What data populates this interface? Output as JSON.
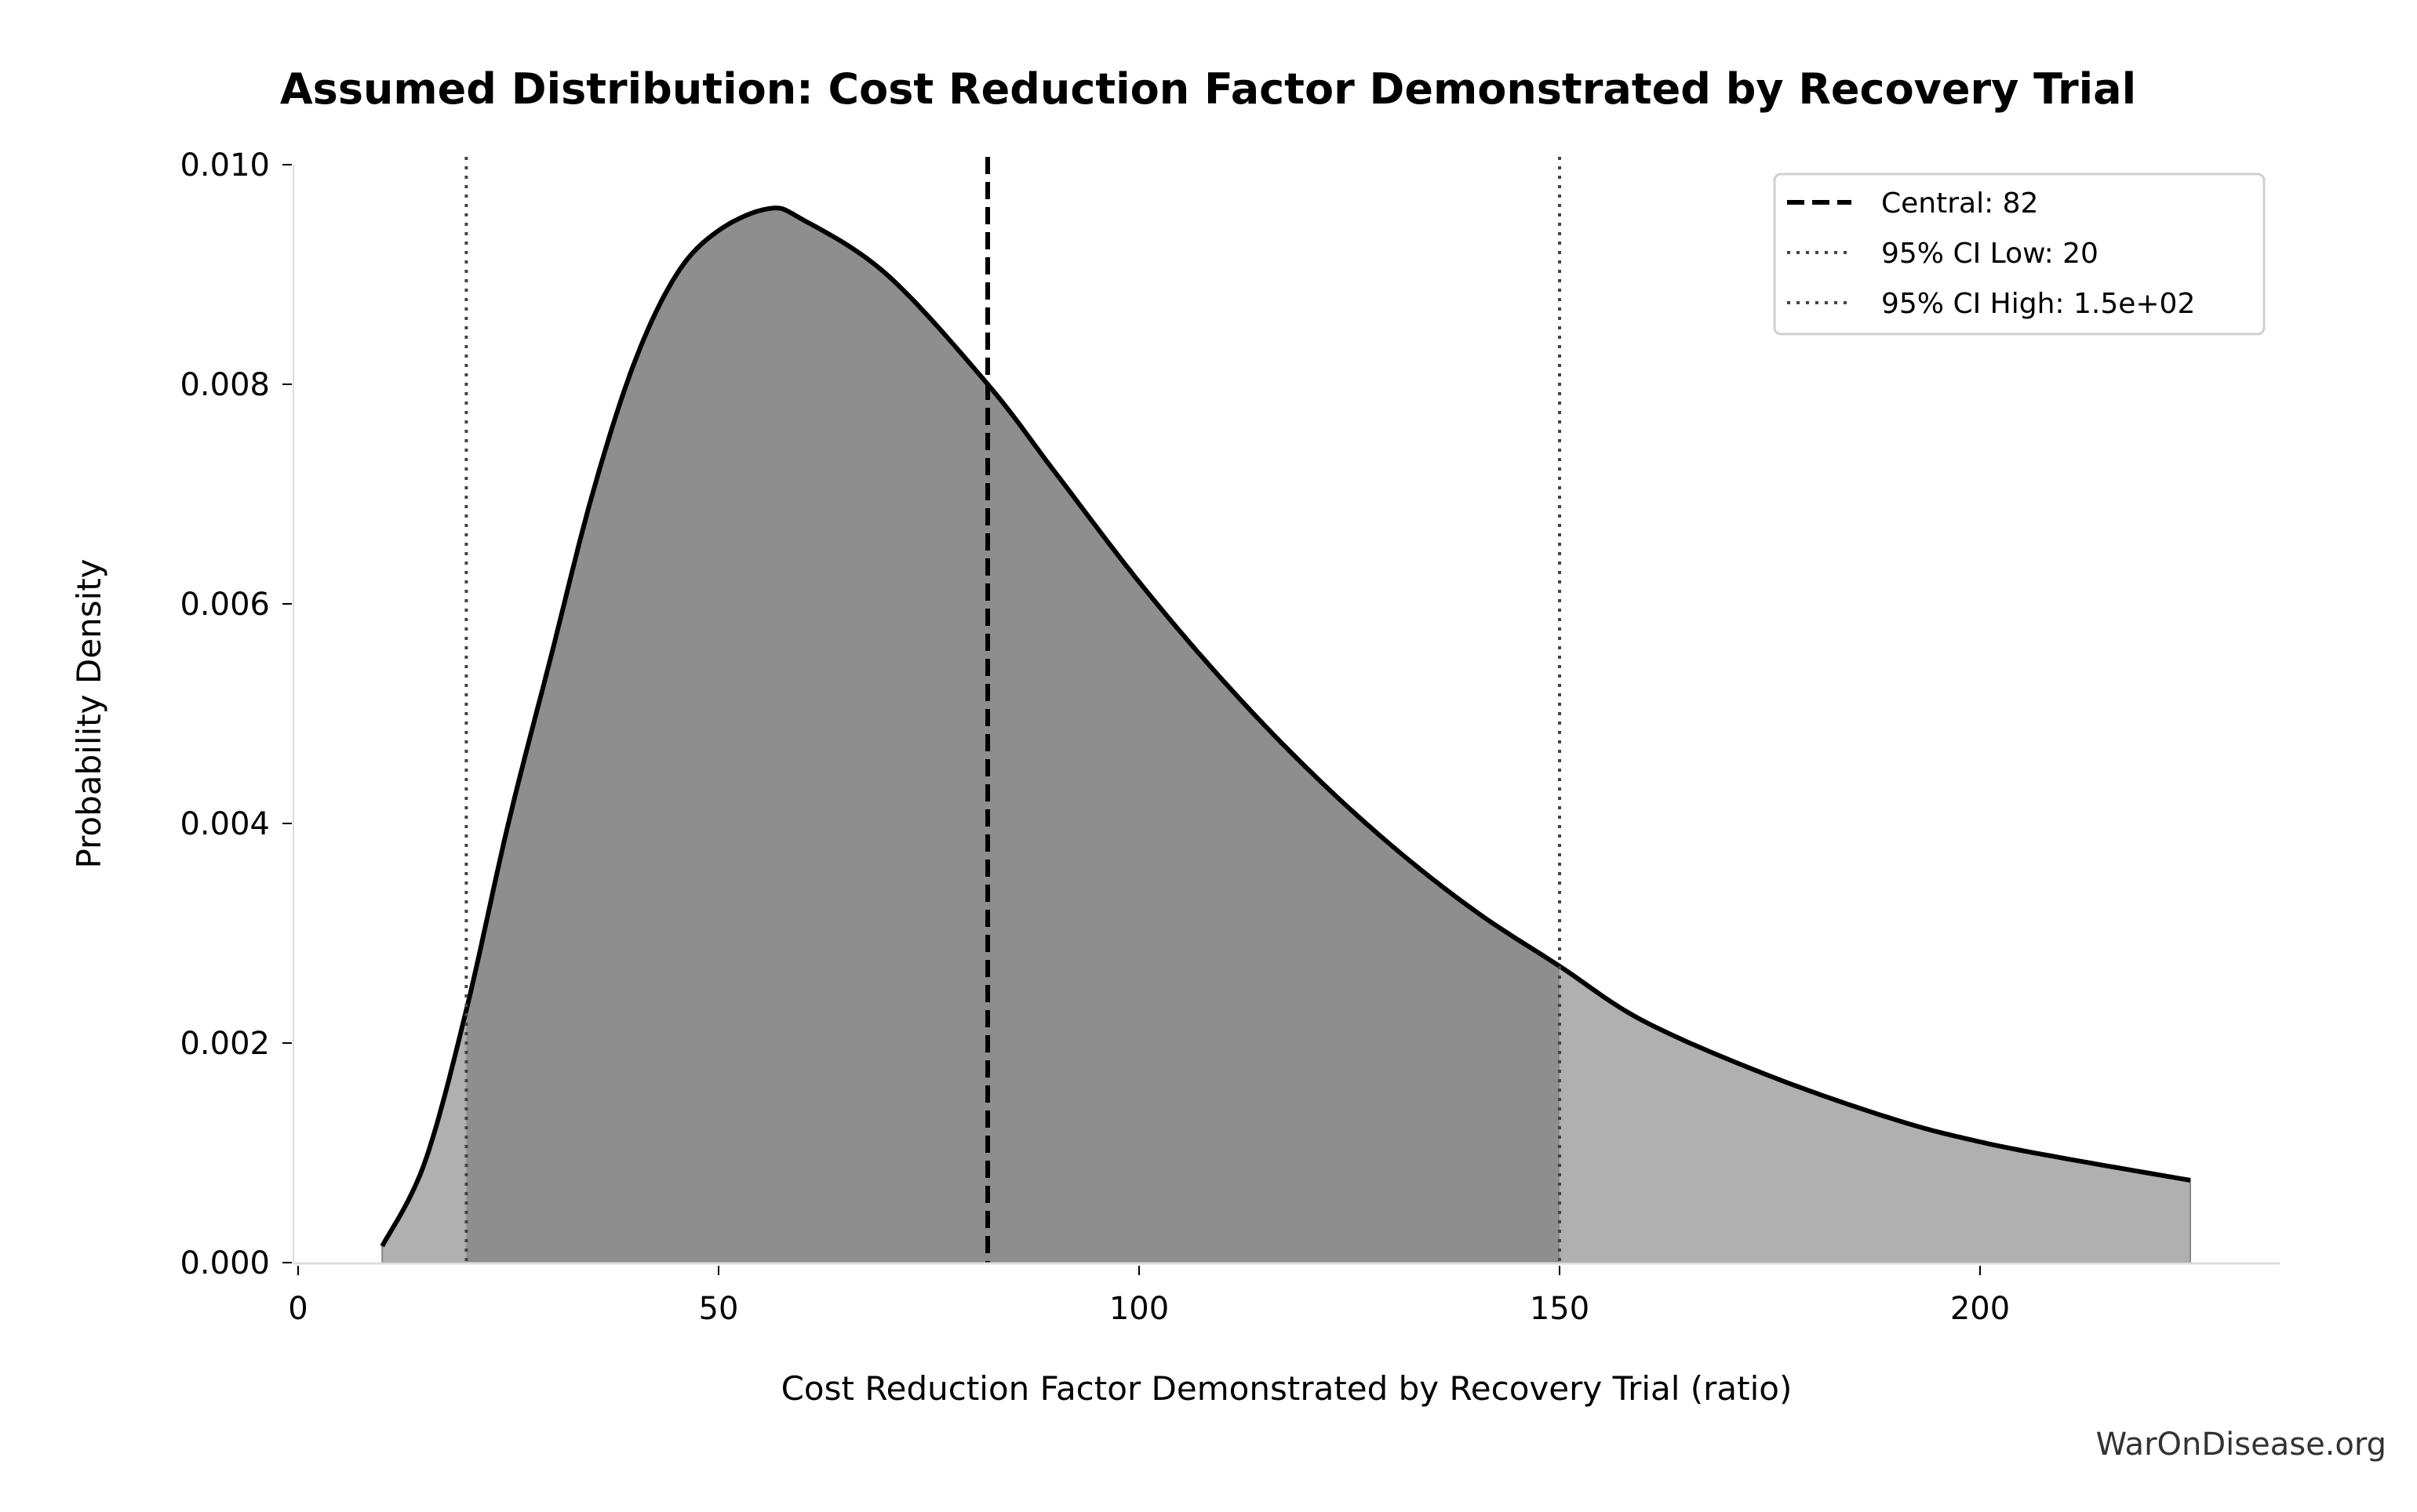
{
  "chart_data": {
    "type": "area",
    "title": "Assumed Distribution: Cost Reduction Factor Demonstrated by Recovery Trial",
    "xlabel": "Cost Reduction Factor Demonstrated by Recovery Trial (ratio)",
    "ylabel": "Probability Density",
    "xlim": [
      0,
      236
    ],
    "ylim": [
      0,
      0.01
    ],
    "xticks": [
      "0",
      "50",
      "100",
      "150",
      "200"
    ],
    "xtick_values": [
      0,
      50,
      100,
      150,
      200
    ],
    "yticks": [
      "0.000",
      "0.002",
      "0.004",
      "0.006",
      "0.008",
      "0.010"
    ],
    "ytick_values": [
      0,
      0.002,
      0.004,
      0.006,
      0.008,
      0.01
    ],
    "grid": false,
    "legend_position": "top-right",
    "series": {
      "x": [
        10,
        15,
        20,
        25,
        30,
        35,
        40,
        45,
        50,
        56,
        60,
        70,
        82,
        90,
        100,
        110,
        120,
        130,
        140,
        150,
        160,
        175,
        190,
        200,
        210,
        225
      ],
      "y": [
        0.00015,
        0.0009,
        0.0023,
        0.004,
        0.0055,
        0.007,
        0.0082,
        0.009,
        0.0094,
        0.0096,
        0.0095,
        0.009,
        0.008,
        0.0072,
        0.0062,
        0.0053,
        0.0045,
        0.0038,
        0.0032,
        0.0027,
        0.0022,
        0.0017,
        0.0013,
        0.0011,
        0.00095,
        0.00075
      ]
    },
    "markers": [
      {
        "label": "Central: 82",
        "value": 82,
        "style": "dashed",
        "color": "#000000"
      },
      {
        "label": "95% CI Low: 20",
        "value": 20,
        "style": "dotted",
        "color": "#444444"
      },
      {
        "label": "95% CI High: 1.5e+02",
        "value": 150,
        "style": "dotted",
        "color": "#444444"
      }
    ],
    "colors": {
      "curve": "#000000",
      "fill_outer": "#b0b0b0",
      "fill_ci": "#8e8e8e"
    }
  },
  "watermark": "WarOnDisease.org"
}
